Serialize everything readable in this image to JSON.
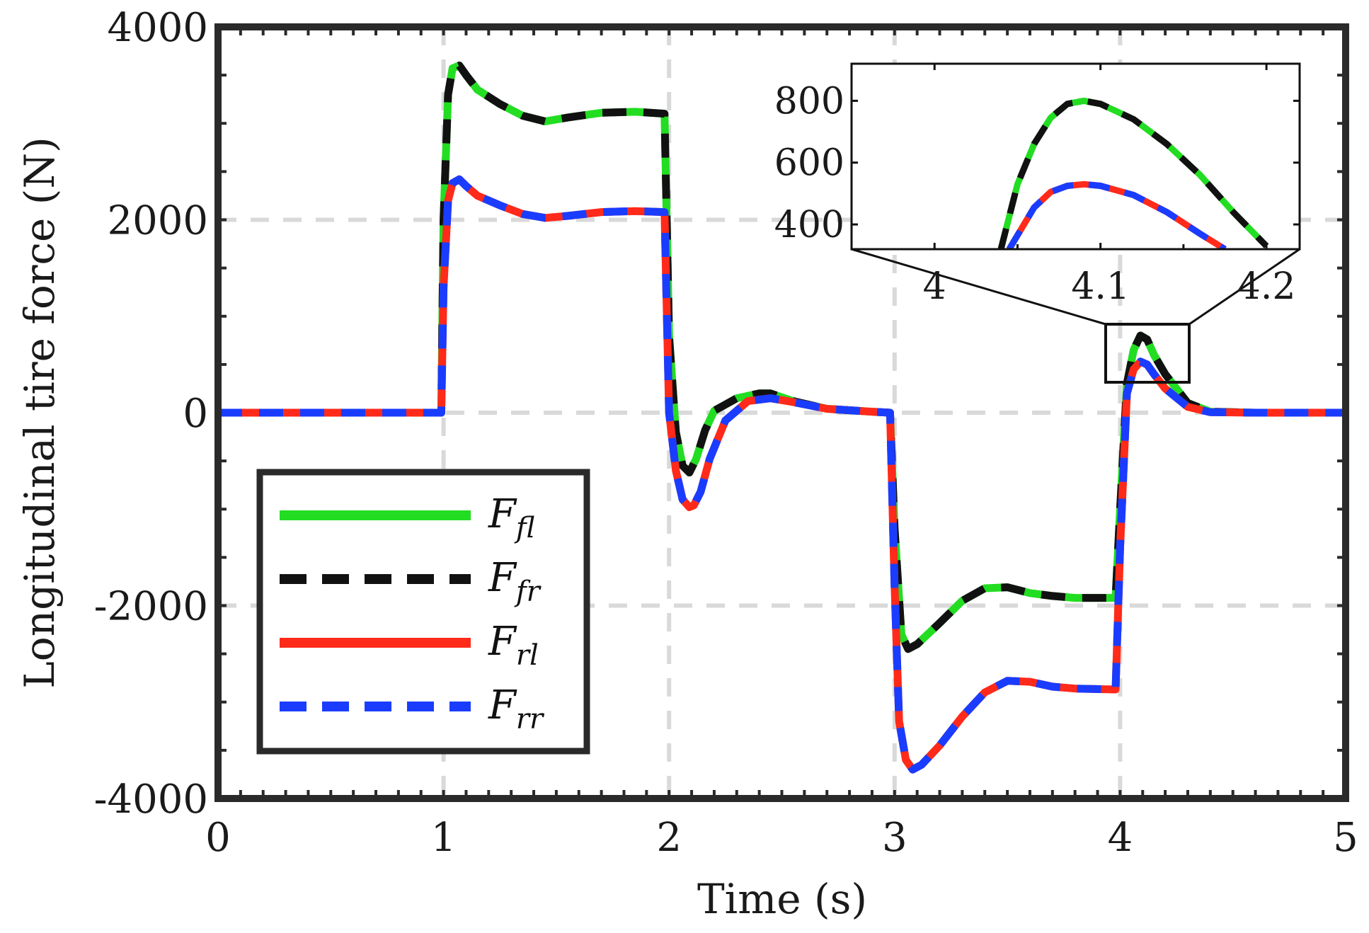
{
  "chart_data": {
    "type": "line",
    "title": "",
    "xlabel": "Time (s)",
    "ylabel": "Longitudinal tire force (N)",
    "xlim": [
      0,
      5
    ],
    "ylim": [
      -4000,
      4000
    ],
    "xticks": [
      0,
      1,
      2,
      3,
      4,
      5
    ],
    "xtick_labels": [
      "0",
      "1",
      "2",
      "3",
      "4",
      "5"
    ],
    "yticks": [
      -4000,
      -2000,
      0,
      2000,
      4000
    ],
    "ytick_labels": [
      "-4000",
      "-2000",
      "0",
      "2000",
      "4000"
    ],
    "grid": true,
    "legend_position": "bottom-left",
    "series": [
      {
        "name": "F_fl",
        "label_main": "F",
        "label_sub": "fl",
        "color": "#22dd22",
        "dash": "solid",
        "x": [
          0,
          0.99,
          1.0,
          1.02,
          1.04,
          1.07,
          1.1,
          1.15,
          1.25,
          1.35,
          1.45,
          1.55,
          1.7,
          1.85,
          1.98,
          2.0,
          2.03,
          2.06,
          2.09,
          2.12,
          2.16,
          2.2,
          2.3,
          2.4,
          2.45,
          2.55,
          2.7,
          2.9,
          2.98,
          3.0,
          3.03,
          3.06,
          3.1,
          3.2,
          3.3,
          3.4,
          3.5,
          3.6,
          3.7,
          3.8,
          3.98,
          4.0,
          4.03,
          4.06,
          4.09,
          4.12,
          4.15,
          4.2,
          4.3,
          4.4,
          4.6,
          5.0
        ],
        "y": [
          0,
          0,
          2000,
          3300,
          3570,
          3600,
          3500,
          3350,
          3200,
          3080,
          3020,
          3060,
          3110,
          3120,
          3100,
          800,
          -200,
          -550,
          -620,
          -480,
          -180,
          20,
          150,
          200,
          200,
          120,
          40,
          10,
          0,
          -1200,
          -2300,
          -2450,
          -2400,
          -2180,
          -1950,
          -1820,
          -1810,
          -1870,
          -1900,
          -1920,
          -1920,
          -1000,
          300,
          650,
          800,
          760,
          600,
          400,
          100,
          10,
          0,
          0
        ]
      },
      {
        "name": "F_fr",
        "label_main": "F",
        "label_sub": "fr",
        "color": "#111111",
        "dash": "dashed",
        "x": [
          0,
          0.99,
          1.0,
          1.02,
          1.04,
          1.07,
          1.1,
          1.15,
          1.25,
          1.35,
          1.45,
          1.55,
          1.7,
          1.85,
          1.98,
          2.0,
          2.03,
          2.06,
          2.09,
          2.12,
          2.16,
          2.2,
          2.3,
          2.4,
          2.45,
          2.55,
          2.7,
          2.9,
          2.98,
          3.0,
          3.03,
          3.06,
          3.1,
          3.2,
          3.3,
          3.4,
          3.5,
          3.6,
          3.7,
          3.8,
          3.98,
          4.0,
          4.03,
          4.06,
          4.09,
          4.12,
          4.15,
          4.2,
          4.3,
          4.4,
          4.6,
          5.0
        ],
        "y": [
          0,
          0,
          2000,
          3300,
          3570,
          3600,
          3500,
          3350,
          3200,
          3080,
          3020,
          3060,
          3110,
          3120,
          3100,
          800,
          -200,
          -550,
          -620,
          -480,
          -180,
          20,
          150,
          200,
          200,
          120,
          40,
          10,
          0,
          -1200,
          -2300,
          -2450,
          -2400,
          -2180,
          -1950,
          -1820,
          -1810,
          -1870,
          -1900,
          -1920,
          -1920,
          -1000,
          300,
          650,
          800,
          760,
          600,
          400,
          100,
          10,
          0,
          0
        ]
      },
      {
        "name": "F_rl",
        "label_main": "F",
        "label_sub": "rl",
        "color": "#ff2a1a",
        "dash": "solid",
        "x": [
          0,
          0.99,
          1.0,
          1.02,
          1.04,
          1.07,
          1.1,
          1.15,
          1.25,
          1.35,
          1.45,
          1.55,
          1.7,
          1.85,
          1.98,
          2.0,
          2.03,
          2.06,
          2.09,
          2.11,
          2.14,
          2.18,
          2.25,
          2.35,
          2.45,
          2.55,
          2.7,
          2.9,
          2.98,
          3.0,
          3.02,
          3.05,
          3.08,
          3.12,
          3.2,
          3.3,
          3.4,
          3.5,
          3.6,
          3.7,
          3.8,
          3.98,
          4.0,
          4.03,
          4.06,
          4.09,
          4.12,
          4.15,
          4.2,
          4.3,
          4.4,
          4.6,
          5.0
        ],
        "y": [
          0,
          0,
          1300,
          2200,
          2380,
          2420,
          2350,
          2250,
          2150,
          2060,
          2020,
          2040,
          2080,
          2090,
          2080,
          0,
          -600,
          -900,
          -980,
          -960,
          -820,
          -480,
          -80,
          120,
          150,
          110,
          40,
          10,
          0,
          -1800,
          -3200,
          -3600,
          -3700,
          -3650,
          -3450,
          -3150,
          -2900,
          -2780,
          -2790,
          -2840,
          -2860,
          -2870,
          -1400,
          200,
          450,
          530,
          500,
          400,
          250,
          60,
          5,
          0,
          0
        ]
      },
      {
        "name": "F_rr",
        "label_main": "F",
        "label_sub": "rr",
        "color": "#1a3cff",
        "dash": "dashed",
        "x": [
          0,
          0.99,
          1.0,
          1.02,
          1.04,
          1.07,
          1.1,
          1.15,
          1.25,
          1.35,
          1.45,
          1.55,
          1.7,
          1.85,
          1.98,
          2.0,
          2.03,
          2.06,
          2.09,
          2.11,
          2.14,
          2.18,
          2.25,
          2.35,
          2.45,
          2.55,
          2.7,
          2.9,
          2.98,
          3.0,
          3.02,
          3.05,
          3.08,
          3.12,
          3.2,
          3.3,
          3.4,
          3.5,
          3.6,
          3.7,
          3.8,
          3.98,
          4.0,
          4.03,
          4.06,
          4.09,
          4.12,
          4.15,
          4.2,
          4.3,
          4.4,
          4.6,
          5.0
        ],
        "y": [
          0,
          0,
          1300,
          2200,
          2380,
          2420,
          2350,
          2250,
          2150,
          2060,
          2020,
          2040,
          2080,
          2090,
          2080,
          0,
          -600,
          -900,
          -980,
          -960,
          -820,
          -480,
          -80,
          120,
          150,
          110,
          40,
          10,
          0,
          -1800,
          -3200,
          -3600,
          -3700,
          -3650,
          -3450,
          -3150,
          -2900,
          -2780,
          -2790,
          -2840,
          -2860,
          -2870,
          -1400,
          200,
          450,
          530,
          500,
          400,
          250,
          60,
          5,
          0,
          0
        ]
      }
    ],
    "inset": {
      "xlim": [
        3.95,
        4.22
      ],
      "ylim": [
        320,
        920
      ],
      "xticks": [
        4.0,
        4.1,
        4.2
      ],
      "xtick_labels": [
        "4",
        "4.1",
        "4.2"
      ],
      "yticks": [
        400,
        600,
        800
      ],
      "ytick_labels": [
        "400",
        "600",
        "800"
      ],
      "zoom_region": {
        "x": [
          3.95,
          4.22
        ],
        "y": [
          320,
          920
        ]
      },
      "series": [
        {
          "name": "front",
          "colors": [
            "#22dd22",
            "#111111"
          ],
          "x": [
            4.04,
            4.05,
            4.06,
            4.07,
            4.08,
            4.09,
            4.1,
            4.12,
            4.14,
            4.16,
            4.18,
            4.2
          ],
          "y": [
            320,
            530,
            660,
            745,
            790,
            800,
            790,
            740,
            660,
            560,
            440,
            330
          ]
        },
        {
          "name": "rear",
          "colors": [
            "#ff2a1a",
            "#1a3cff"
          ],
          "x": [
            4.045,
            4.06,
            4.07,
            4.08,
            4.09,
            4.1,
            4.12,
            4.14,
            4.16,
            4.175
          ],
          "y": [
            320,
            455,
            505,
            525,
            530,
            525,
            495,
            440,
            370,
            320
          ]
        }
      ]
    }
  }
}
